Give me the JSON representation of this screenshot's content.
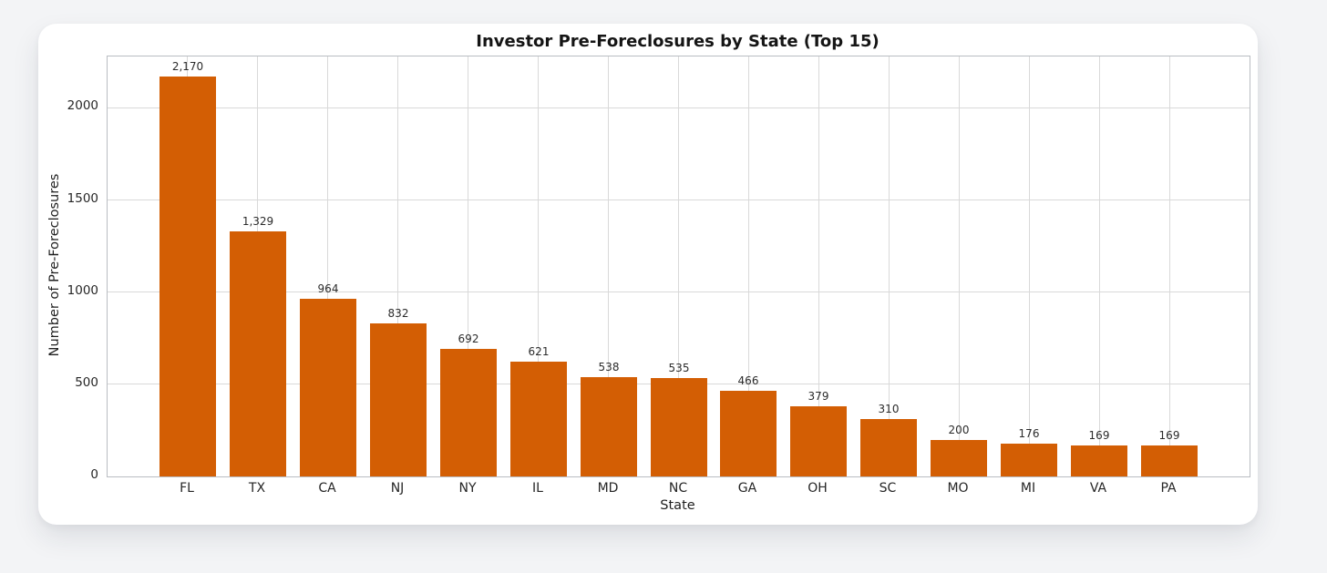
{
  "page": {
    "background_color": "#f3f4f6",
    "card_background": "#ffffff"
  },
  "chart_data": {
    "type": "bar",
    "title": "Investor Pre-Foreclosures by State (Top 15)",
    "xlabel": "State",
    "ylabel": "Number of Pre-Foreclosures",
    "categories": [
      "FL",
      "TX",
      "CA",
      "NJ",
      "NY",
      "IL",
      "MD",
      "NC",
      "GA",
      "OH",
      "SC",
      "MO",
      "MI",
      "VA",
      "PA"
    ],
    "values": [
      2170,
      1329,
      964,
      832,
      692,
      621,
      538,
      535,
      466,
      379,
      310,
      200,
      176,
      169,
      169
    ],
    "value_labels": [
      "2,170",
      "1,329",
      "964",
      "832",
      "692",
      "621",
      "538",
      "535",
      "466",
      "379",
      "310",
      "200",
      "176",
      "169",
      "169"
    ],
    "y_ticks": [
      0,
      500,
      1000,
      1500,
      2000
    ],
    "y_tick_labels": [
      "0",
      "500",
      "1000",
      "1500",
      "2000"
    ],
    "ylim": [
      0,
      2278.5
    ],
    "grid": "both",
    "legend_position": "none",
    "bar_color": "#d35e04",
    "grid_color": "#d9d9d9",
    "spine_color": "#b9bdc2"
  }
}
